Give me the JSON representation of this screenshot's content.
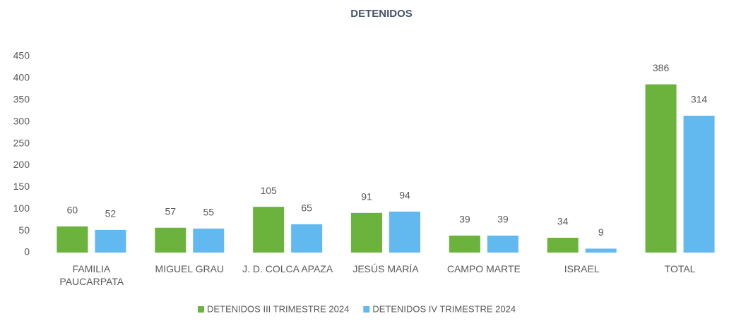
{
  "chart_data": {
    "type": "bar",
    "title": "DETENIDOS",
    "categories": [
      "FAMILIA PAUCARPATA",
      "MIGUEL GRAU",
      "J. D. COLCA APAZA",
      "JESÚS MARÍA",
      "CAMPO MARTE",
      "ISRAEL",
      "TOTAL"
    ],
    "series": [
      {
        "name": "DETENIDOS III TRIMESTRE 2024",
        "color": "#6cb33e",
        "values": [
          60,
          57,
          105,
          91,
          39,
          34,
          386
        ]
      },
      {
        "name": "DETENIDOS IV TRIMESTRE 2024",
        "color": "#62b9ef",
        "values": [
          52,
          55,
          65,
          94,
          39,
          9,
          314
        ]
      }
    ],
    "ylim": [
      0,
      450
    ],
    "yticks": [
      0,
      50,
      100,
      150,
      200,
      250,
      300,
      350,
      400,
      450
    ],
    "grid": false,
    "legend": "bottom",
    "data_labels": true
  }
}
